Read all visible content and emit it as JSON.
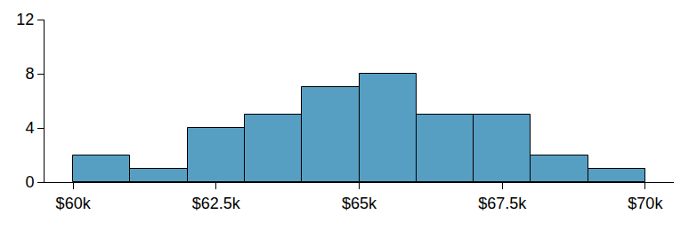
{
  "chart_data": {
    "type": "histogram",
    "bins": [
      60000,
      61000,
      62000,
      63000,
      64000,
      65000,
      66000,
      67000,
      68000,
      69000,
      70000
    ],
    "values": [
      2,
      1,
      4,
      5,
      7,
      8,
      5,
      5,
      2,
      1
    ],
    "color": "#569fc3",
    "xlim": [
      59500,
      70500
    ],
    "xticks": [
      {
        "value": 60000,
        "label": "$60k"
      },
      {
        "value": 62500,
        "label": "$62.5k"
      },
      {
        "value": 65000,
        "label": "$65k"
      },
      {
        "value": 67500,
        "label": "$67.5k"
      },
      {
        "value": 70000,
        "label": "$70k"
      }
    ],
    "ylim": [
      0,
      12
    ],
    "yticks": [
      0,
      4,
      8,
      12
    ],
    "grid": false
  }
}
